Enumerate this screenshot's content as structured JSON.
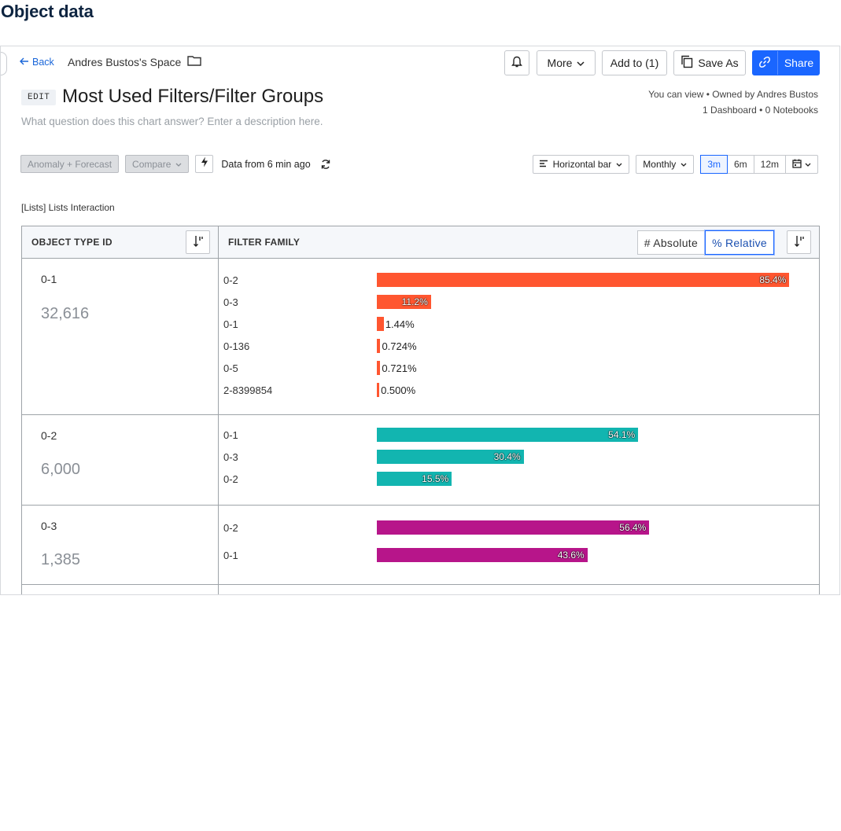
{
  "page_heading": "Object data",
  "header": {
    "back_label": "Back",
    "space_name": "Andres Bustos's Space",
    "more_label": "More",
    "add_to_label": "Add to (1)",
    "save_as_label": "Save As",
    "share_label": "Share"
  },
  "chart": {
    "edit_label": "EDIT",
    "title": "Most Used Filters/Filter Groups",
    "description_placeholder": "What question does this chart answer? Enter a description here.",
    "owner_line": "You can view • Owned by Andres Bustos",
    "usage_line": "1 Dashboard • 0 Notebooks"
  },
  "toolbar": {
    "anomaly_label": "Anomaly + Forecast",
    "compare_label": "Compare",
    "data_freshness": "Data from 6 min ago",
    "chart_type_label": "Horizontal bar",
    "interval_label": "Monthly",
    "ranges": [
      "3m",
      "6m",
      "12m"
    ],
    "active_range": "3m"
  },
  "section_label": "[Lists] Lists Interaction",
  "table": {
    "col1_header": "OBJECT TYPE ID",
    "col2_header": "FILTER FAMILY",
    "absolute_label": "# Absolute",
    "relative_label": "% Relative"
  },
  "colors": {
    "accent": "#1a66ff",
    "series_0_1": "#ff5630",
    "series_0_2": "#12b5b0",
    "series_0_3": "#b7158a"
  },
  "chart_data": {
    "type": "bar",
    "orientation": "horizontal",
    "mode": "% Relative",
    "groups": [
      {
        "id": "0-1",
        "count": "32,616",
        "color": "#ff5630",
        "rows": [
          {
            "label": "0-2",
            "value": 85.4,
            "display": "85.4%"
          },
          {
            "label": "0-3",
            "value": 11.2,
            "display": "11.2%"
          },
          {
            "label": "0-1",
            "value": 1.44,
            "display": "1.44%"
          },
          {
            "label": "0-136",
            "value": 0.724,
            "display": "0.724%"
          },
          {
            "label": "0-5",
            "value": 0.721,
            "display": "0.721%"
          },
          {
            "label": "2-8399854",
            "value": 0.5,
            "display": "0.500%"
          }
        ]
      },
      {
        "id": "0-2",
        "count": "6,000",
        "color": "#12b5b0",
        "rows": [
          {
            "label": "0-1",
            "value": 54.1,
            "display": "54.1%"
          },
          {
            "label": "0-3",
            "value": 30.4,
            "display": "30.4%"
          },
          {
            "label": "0-2",
            "value": 15.5,
            "display": "15.5%"
          }
        ]
      },
      {
        "id": "0-3",
        "count": "1,385",
        "color": "#b7158a",
        "rows": [
          {
            "label": "0-2",
            "value": 56.4,
            "display": "56.4%"
          },
          {
            "label": "0-1",
            "value": 43.6,
            "display": "43.6%"
          }
        ]
      }
    ]
  }
}
